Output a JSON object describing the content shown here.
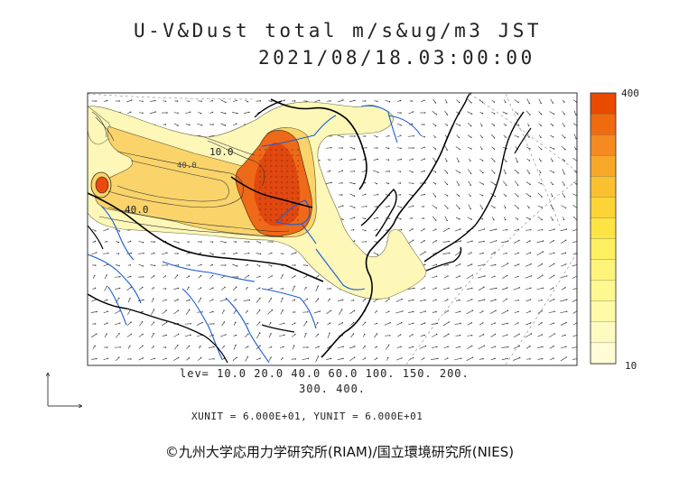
{
  "title": {
    "line1": "U-V&Dust total m/s&ug/m3 JST",
    "line2": "2021/08/18.03:00:00"
  },
  "levels": {
    "line1": "lev= 10.0 20.0 40.0 60.0 100. 150. 200.",
    "line2": "300. 400."
  },
  "units": "XUNIT = 6.000E+01, YUNIT = 6.000E+01",
  "credit": "©九州大学応用力学研究所(RIAM)/国立環境研究所(NIES)",
  "colorbar": {
    "max_label": "400",
    "min_label": "10",
    "colors": [
      "#e84a00",
      "#f06a10",
      "#f58a20",
      "#f8a828",
      "#fac030",
      "#fcd438",
      "#fde444",
      "#fef060",
      "#fff47a",
      "#fff890",
      "#fffaa8",
      "#fffbc0",
      "#fffcd6"
    ]
  },
  "contour_labels": {
    "a": "10.0",
    "b": "40.0",
    "c": "40.0"
  },
  "colors": {
    "land_outline": "#000000",
    "rivers": "#1a5bd6",
    "dust_low": "#fdf7b8",
    "dust_mid": "#f7b43a",
    "dust_high": "#e8501a"
  }
}
